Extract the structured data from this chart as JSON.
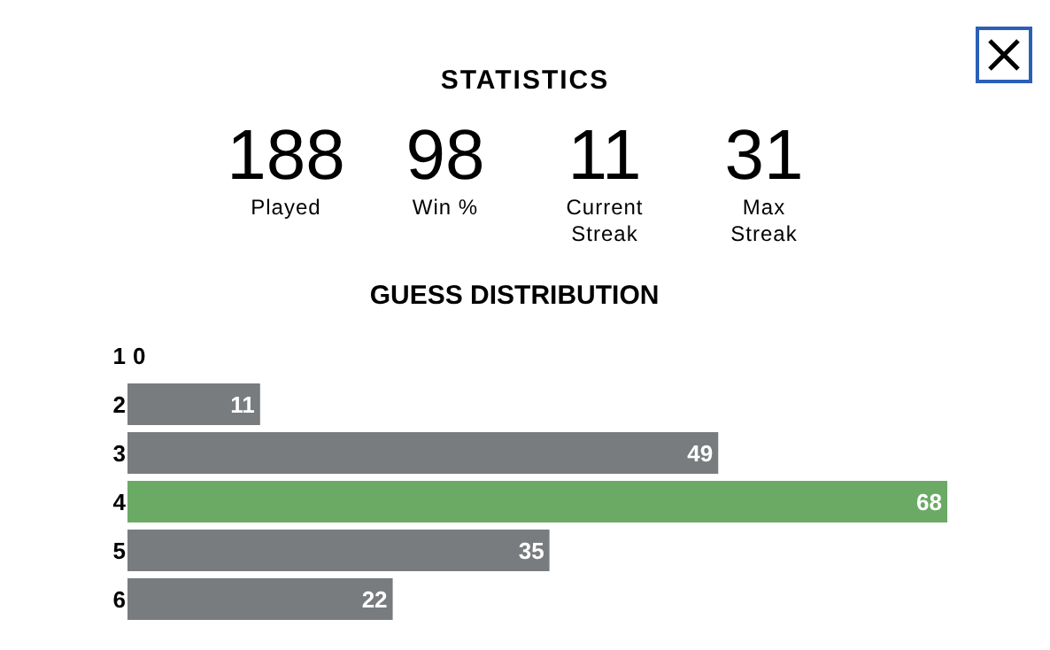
{
  "chart_data": [
    {
      "type": "other",
      "title": "STATISTICS",
      "annotations": [
        "188",
        "Played",
        "98",
        "Win %",
        "11",
        "Current Streak",
        "31",
        "Max Streak"
      ]
    },
    {
      "type": "bar",
      "orientation": "horizontal",
      "title": "GUESS DISTRIBUTION",
      "categories": [
        "1",
        "2",
        "3",
        "4",
        "5",
        "6"
      ],
      "values": [
        0,
        11,
        49,
        68,
        35,
        22
      ],
      "colors": [
        "#787c7e",
        "#787c7e",
        "#787c7e",
        "#6aaa64",
        "#787c7e",
        "#787c7e"
      ],
      "data_labels": true
    }
  ]
}
